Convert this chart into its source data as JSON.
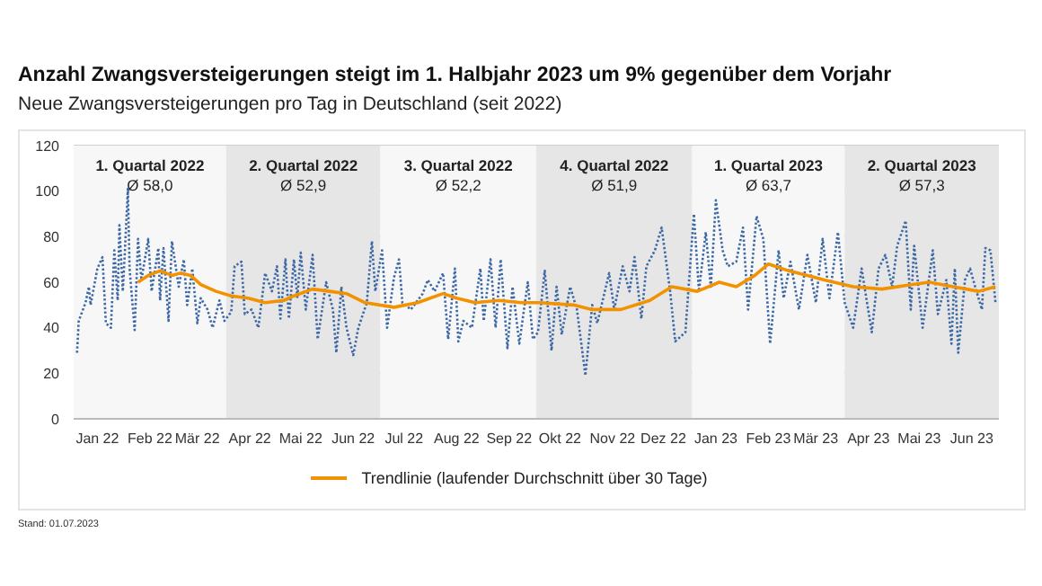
{
  "chart_data": {
    "type": "line",
    "title": "Anzahl Zwangsversteigerungen steigt im 1. Halbjahr 2023 um 9% gegenüber dem Vorjahr",
    "subtitle": "Neue Zwangsversteigerungen pro Tag in Deutschland (seit 2022)",
    "annotations": [
      "Stand: 01.07.2023"
    ],
    "xlim": [
      "2022-01-01",
      "2023-07-01"
    ],
    "xticks": [
      {
        "value": "2022-01-15",
        "label": "Jan 22"
      },
      {
        "value": "2022-02-15",
        "label": "Feb 22"
      },
      {
        "value": "2022-03-15",
        "label": "Mär 22"
      },
      {
        "value": "2022-04-15",
        "label": "Apr 22"
      },
      {
        "value": "2022-05-15",
        "label": "Mai 22"
      },
      {
        "value": "2022-06-15",
        "label": "Jun 22"
      },
      {
        "value": "2022-07-15",
        "label": "Jul 22"
      },
      {
        "value": "2022-08-15",
        "label": "Aug 22"
      },
      {
        "value": "2022-09-15",
        "label": "Sep 22"
      },
      {
        "value": "2022-10-15",
        "label": "Okt 22"
      },
      {
        "value": "2022-11-15",
        "label": "Nov 22"
      },
      {
        "value": "2022-12-15",
        "label": "Dez 22"
      },
      {
        "value": "2023-01-15",
        "label": "Jan 23"
      },
      {
        "value": "2023-02-15",
        "label": "Feb 23"
      },
      {
        "value": "2023-03-15",
        "label": "Mär 23"
      },
      {
        "value": "2023-04-15",
        "label": "Apr 23"
      },
      {
        "value": "2023-05-15",
        "label": "Mai 23"
      },
      {
        "value": "2023-06-15",
        "label": "Jun 23"
      }
    ],
    "ylim": [
      0,
      120
    ],
    "yticks": [
      0,
      20,
      40,
      60,
      80,
      100,
      120
    ],
    "grid": "y",
    "legend": "bottom",
    "marker": "none",
    "bands": [
      {
        "axis": "x",
        "from": "2022-01-01",
        "to": "2022-04-01",
        "label": "1. Quartal 2022\nØ 58,0",
        "color": "#f7f7f7"
      },
      {
        "axis": "x",
        "from": "2022-04-01",
        "to": "2022-07-01",
        "label": "2. Quartal 2022\nØ 52,9",
        "color": "#e6e6e6"
      },
      {
        "axis": "x",
        "from": "2022-07-01",
        "to": "2022-10-01",
        "label": "3. Quartal 2022\nØ 52,2",
        "color": "#f7f7f7"
      },
      {
        "axis": "x",
        "from": "2022-10-01",
        "to": "2023-01-01",
        "label": "4. Quartal 2022\nØ 51,9",
        "color": "#e6e6e6"
      },
      {
        "axis": "x",
        "from": "2023-01-01",
        "to": "2023-04-01",
        "label": "1. Quartal 2023\nØ 63,7",
        "color": "#f7f7f7"
      },
      {
        "axis": "x",
        "from": "2023-04-01",
        "to": "2023-07-01",
        "label": "2. Quartal 2023\nØ 57,3",
        "color": "#e6e6e6"
      }
    ],
    "series": [
      {
        "color": "#3d68a6",
        "line_style": "dotted",
        "x": [
          "2022-01-03",
          "2022-01-04",
          "2022-01-08",
          "2022-01-10",
          "2022-01-11",
          "2022-01-15",
          "2022-01-18",
          "2022-01-20",
          "2022-01-23",
          "2022-01-25",
          "2022-01-27",
          "2022-01-28",
          "2022-01-30",
          "2022-01-31",
          "2022-02-02",
          "2022-02-03",
          "2022-02-06",
          "2022-02-08",
          "2022-02-10",
          "2022-02-14",
          "2022-02-16",
          "2022-02-20",
          "2022-02-21",
          "2022-02-23",
          "2022-02-26",
          "2022-02-28",
          "2022-03-04",
          "2022-03-07",
          "2022-03-09",
          "2022-03-12",
          "2022-03-15",
          "2022-03-17",
          "2022-03-21",
          "2022-03-24",
          "2022-03-28",
          "2022-03-31",
          "2022-04-04",
          "2022-04-06",
          "2022-04-10",
          "2022-04-12",
          "2022-04-16",
          "2022-04-20",
          "2022-04-24",
          "2022-04-28",
          "2022-05-01",
          "2022-05-03",
          "2022-05-06",
          "2022-05-08",
          "2022-05-11",
          "2022-05-13",
          "2022-05-15",
          "2022-05-18",
          "2022-05-22",
          "2022-05-25",
          "2022-05-30",
          "2022-06-03",
          "2022-06-05",
          "2022-06-08",
          "2022-06-11",
          "2022-06-15",
          "2022-06-18",
          "2022-06-23",
          "2022-06-26",
          "2022-06-28",
          "2022-07-02",
          "2022-07-05",
          "2022-07-09",
          "2022-07-12",
          "2022-07-14",
          "2022-07-19",
          "2022-07-26",
          "2022-07-29",
          "2022-08-02",
          "2022-08-07",
          "2022-08-10",
          "2022-08-14",
          "2022-08-16",
          "2022-08-19",
          "2022-08-24",
          "2022-08-29",
          "2022-08-31",
          "2022-09-04",
          "2022-09-07",
          "2022-09-10",
          "2022-09-14",
          "2022-09-17",
          "2022-09-21",
          "2022-09-26",
          "2022-09-29",
          "2022-10-02",
          "2022-10-06",
          "2022-10-10",
          "2022-10-13",
          "2022-10-16",
          "2022-10-21",
          "2022-10-25",
          "2022-10-30",
          "2022-11-03",
          "2022-11-06",
          "2022-11-13",
          "2022-11-16",
          "2022-11-21",
          "2022-11-25",
          "2022-11-28",
          "2022-12-02",
          "2022-12-05",
          "2022-12-10",
          "2022-12-14",
          "2022-12-19",
          "2022-12-22",
          "2022-12-28",
          "2023-01-02",
          "2023-01-05",
          "2023-01-09",
          "2023-01-12",
          "2023-01-15",
          "2023-01-19",
          "2023-01-22",
          "2023-01-27",
          "2023-01-31",
          "2023-02-03",
          "2023-02-08",
          "2023-02-12",
          "2023-02-16",
          "2023-02-21",
          "2023-02-24",
          "2023-02-28",
          "2023-03-05",
          "2023-03-10",
          "2023-03-15",
          "2023-03-19",
          "2023-03-23",
          "2023-03-28",
          "2023-04-01",
          "2023-04-06",
          "2023-04-11",
          "2023-04-17",
          "2023-04-21",
          "2023-04-25",
          "2023-04-29",
          "2023-05-02",
          "2023-05-07",
          "2023-05-10",
          "2023-05-12",
          "2023-05-17",
          "2023-05-23",
          "2023-05-26",
          "2023-05-31",
          "2023-06-03",
          "2023-06-05",
          "2023-06-07",
          "2023-06-11",
          "2023-06-14",
          "2023-06-17",
          "2023-06-21",
          "2023-06-23",
          "2023-06-26",
          "2023-06-29"
        ],
        "values": [
          29,
          43,
          51,
          58,
          50,
          66,
          71,
          42,
          40,
          74,
          52,
          85,
          56,
          70,
          101,
          66,
          39,
          79,
          61,
          79,
          56,
          75,
          52,
          75,
          43,
          78,
          58,
          70,
          50,
          66,
          42,
          53,
          48,
          40,
          52,
          43,
          47,
          67,
          69,
          46,
          48,
          40,
          64,
          56,
          67,
          44,
          70,
          44,
          70,
          53,
          73,
          48,
          72,
          35,
          60,
          48,
          29,
          58,
          40,
          28,
          40,
          51,
          78,
          56,
          74,
          40,
          62,
          70,
          51,
          48,
          55,
          61,
          56,
          64,
          35,
          66,
          34,
          43,
          40,
          66,
          43,
          70,
          40,
          70,
          31,
          58,
          33,
          60,
          35,
          38,
          65,
          30,
          58,
          37,
          58,
          48,
          19,
          50,
          42,
          64,
          48,
          67,
          56,
          71,
          44,
          67,
          74,
          84,
          56,
          34,
          38,
          90,
          56,
          82,
          58,
          96,
          74,
          67,
          69,
          84,
          48,
          89,
          79,
          33,
          74,
          53,
          69,
          48,
          72,
          51,
          79,
          53,
          82,
          51,
          40,
          66,
          38,
          66,
          72,
          58,
          76,
          87,
          48,
          76,
          40,
          74,
          46,
          61,
          33,
          66,
          29,
          61,
          66,
          58,
          48,
          75,
          74,
          51
        ]
      },
      {
        "name": "Trendlinie (laufender Durchschnitt über 30 Tage)",
        "color": "#f39200",
        "line_style": "solid",
        "x": [
          "2022-02-08",
          "2022-02-14",
          "2022-02-21",
          "2022-02-28",
          "2022-03-05",
          "2022-03-11",
          "2022-03-17",
          "2022-03-26",
          "2022-04-04",
          "2022-04-14",
          "2022-04-24",
          "2022-05-05",
          "2022-05-11",
          "2022-05-22",
          "2022-06-01",
          "2022-06-11",
          "2022-06-22",
          "2022-07-09",
          "2022-07-23",
          "2022-08-07",
          "2022-08-15",
          "2022-08-26",
          "2022-09-09",
          "2022-09-22",
          "2022-10-03",
          "2022-10-23",
          "2022-11-03",
          "2022-11-20",
          "2022-12-07",
          "2022-12-20",
          "2023-01-04",
          "2023-01-17",
          "2023-01-27",
          "2023-02-07",
          "2023-02-15",
          "2023-02-27",
          "2023-03-10",
          "2023-03-20",
          "2023-04-06",
          "2023-04-23",
          "2023-05-11",
          "2023-05-21",
          "2023-06-04",
          "2023-06-19",
          "2023-06-29"
        ],
        "values": [
          60,
          63,
          65,
          63,
          64,
          63,
          59,
          56,
          54,
          53,
          51,
          52,
          54,
          57,
          56,
          55,
          51,
          49,
          51,
          55,
          53,
          51,
          52,
          51,
          51,
          50,
          48,
          48,
          52,
          58,
          56,
          60,
          58,
          63,
          68,
          65,
          63,
          61,
          58,
          57,
          59,
          60,
          58,
          56,
          58
        ]
      }
    ]
  }
}
